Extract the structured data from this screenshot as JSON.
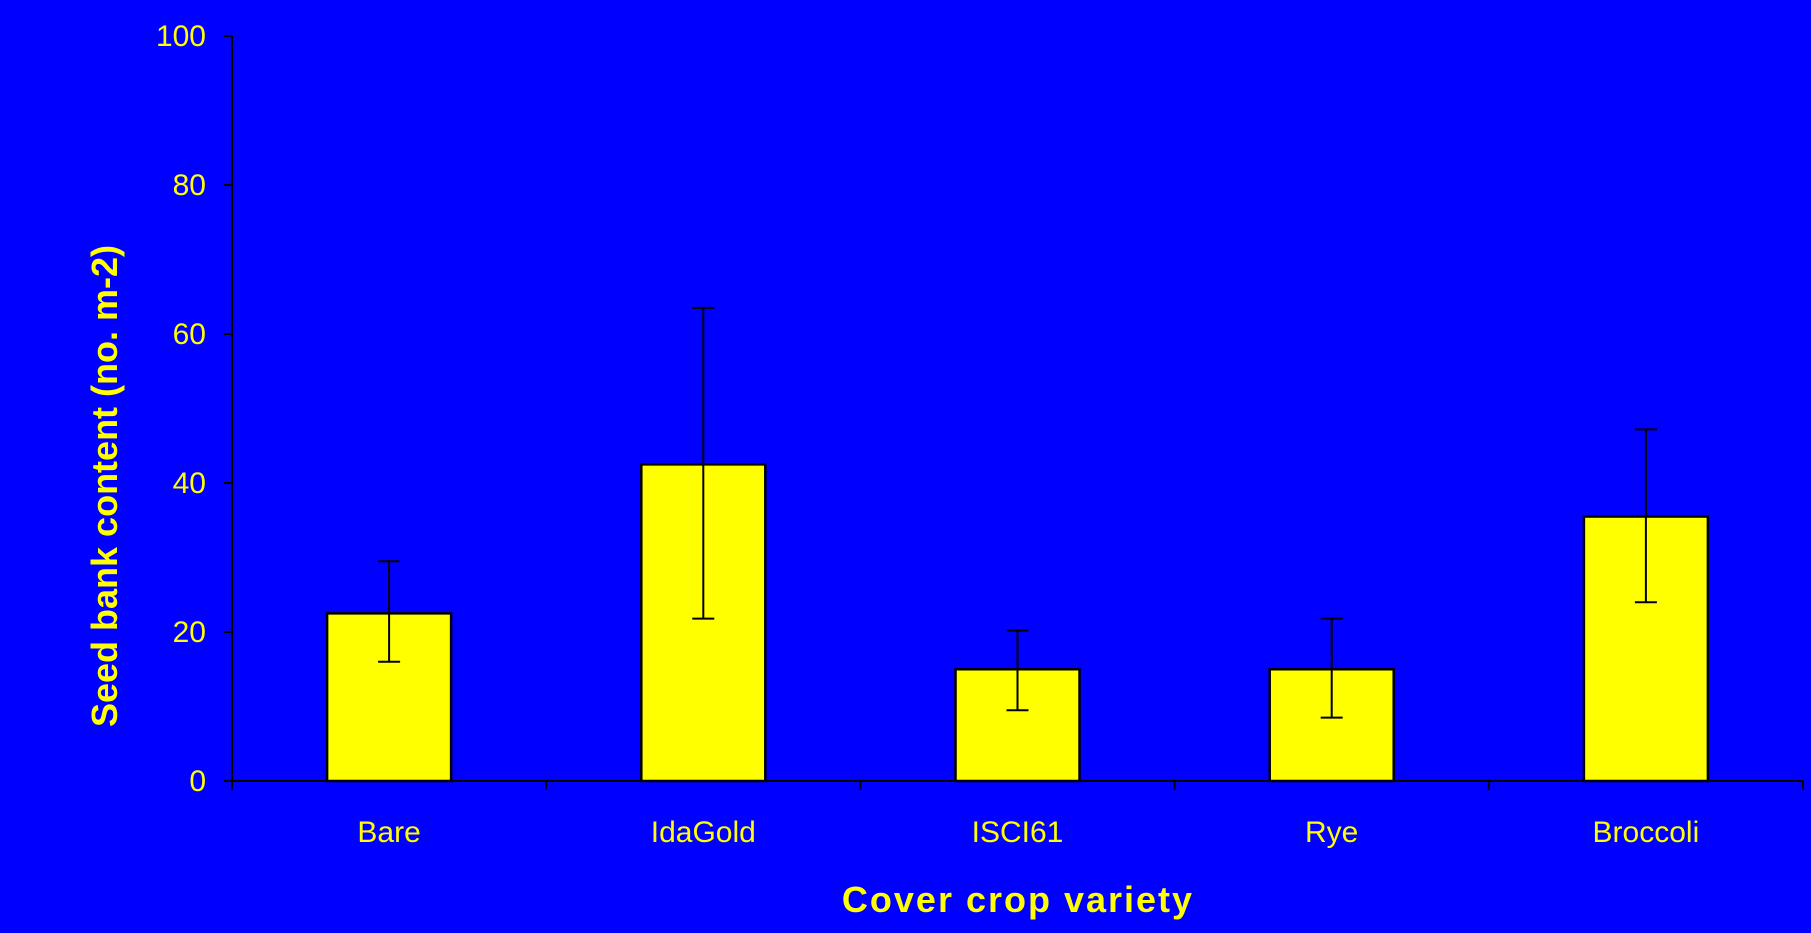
{
  "chart_data": {
    "type": "bar",
    "xlabel": "Cover crop variety",
    "ylabel": "Seed bank content (no. m-2)",
    "categories": [
      "Bare",
      "IdaGold",
      "ISCI61",
      "Rye",
      "Broccoli"
    ],
    "values": [
      22.5,
      42.5,
      15,
      15,
      35.5
    ],
    "error_low": [
      16,
      21.8,
      9.5,
      8.5,
      24
    ],
    "error_high": [
      29.5,
      63.5,
      20.2,
      21.8,
      47.2
    ],
    "ylim": [
      0,
      100
    ],
    "yticks": [
      0,
      20,
      40,
      60,
      80,
      100
    ],
    "grid": false,
    "legend": "none"
  },
  "colors": {
    "background": "#0000ff",
    "bar_fill": "#ffff00",
    "bar_stroke": "#000000",
    "text": "#ffff00",
    "axis": "#000000"
  }
}
